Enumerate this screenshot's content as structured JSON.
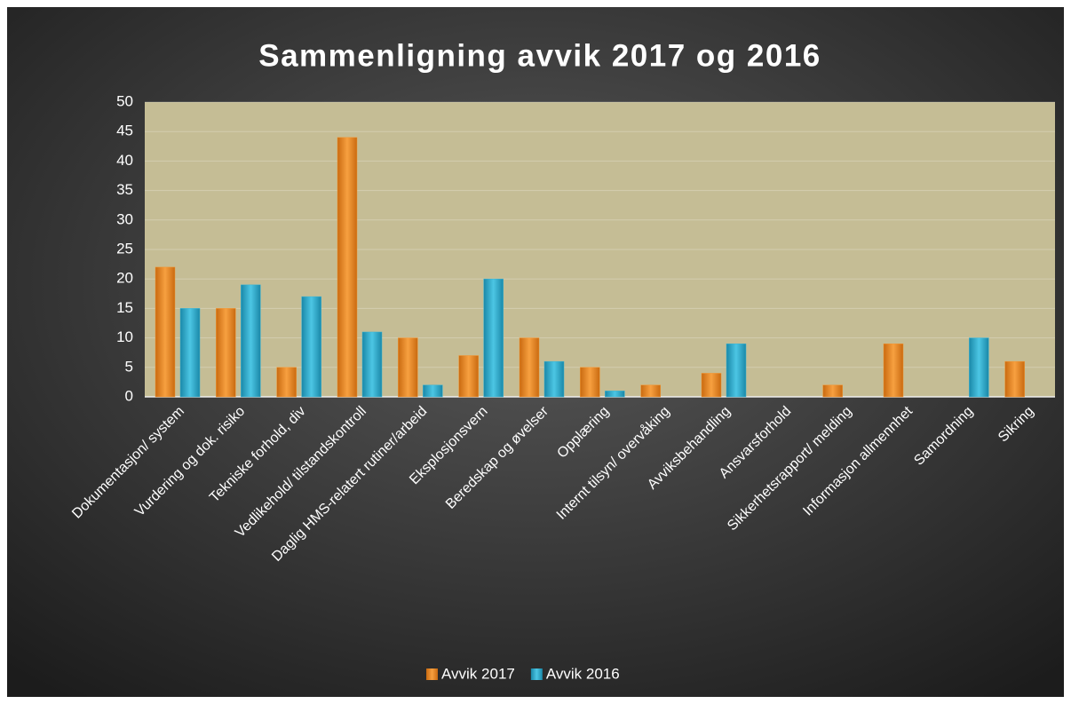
{
  "chart_data": {
    "type": "bar",
    "title": "Sammenligning avvik 2017 og 2016",
    "categories": [
      "Dokumentasjon/ system",
      "Vurdering og dok. risiko",
      "Tekniske forhold, div",
      "Vedlikehold/ tilstandskontroll",
      "Daglig HMS-relatert rutiner/arbeid",
      "Eksplosjonsvern",
      "Beredskap og øvelser",
      "Opplæring",
      "Internt tilsyn/ overvåking",
      "Avviksbehandling",
      "Ansvarsforhold",
      "Sikkerhetsrapport/ melding",
      "Informasjon allmennhet",
      "Samordning",
      "Sikring"
    ],
    "series": [
      {
        "name": "Avvik 2017",
        "color": "#f39530",
        "values": [
          22,
          15,
          5,
          44,
          10,
          7,
          10,
          5,
          2,
          4,
          0,
          2,
          9,
          0,
          6
        ]
      },
      {
        "name": "Avvik 2016",
        "color": "#3bb4d3",
        "values": [
          15,
          19,
          17,
          11,
          2,
          20,
          6,
          1,
          0,
          9,
          0,
          0,
          0,
          10,
          0
        ]
      }
    ],
    "ylim": [
      0,
      50
    ],
    "yticks": [
      0,
      5,
      10,
      15,
      20,
      25,
      30,
      35,
      40,
      45,
      50
    ],
    "grid": true,
    "legend": "bottom"
  }
}
